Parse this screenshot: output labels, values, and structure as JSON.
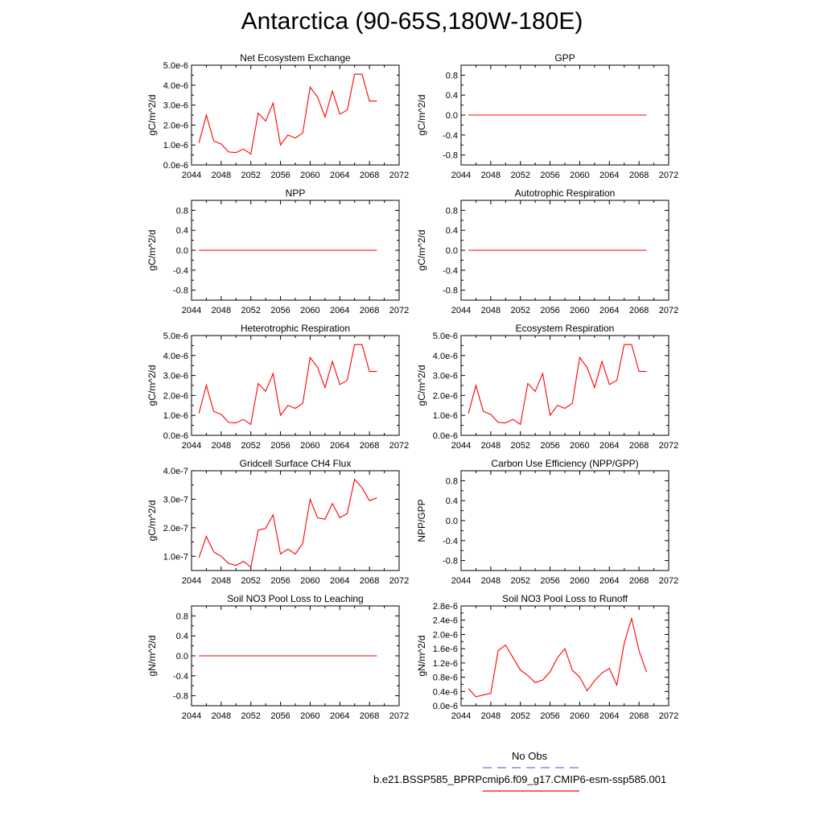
{
  "title": "Antarctica (90-65S,180W-180E)",
  "colors": {
    "series": "#ff0000",
    "obs": "#6a6aff",
    "axis": "#000000"
  },
  "legend": {
    "obs_label": "No Obs",
    "model_label": "b.e21.BSSP585_BPRPcmip6.f09_g17.CMIP6-esm-ssp585.001"
  },
  "chart_data": [
    {
      "type": "line",
      "title": "Net Ecosystem Exchange",
      "ylabel": "gC/m^2/d",
      "xlim": [
        2044,
        2072
      ],
      "ylim": [
        0,
        5e-06
      ],
      "xticks": [
        "2044",
        "2048",
        "2052",
        "2056",
        "2060",
        "2064",
        "2068",
        "2072"
      ],
      "yticks": [
        {
          "v": 0,
          "l": "0.0e-6"
        },
        {
          "v": 1e-06,
          "l": "1.0e-6"
        },
        {
          "v": 2e-06,
          "l": "2.0e-6"
        },
        {
          "v": 3e-06,
          "l": "3.0e-6"
        },
        {
          "v": 4e-06,
          "l": "4.0e-6"
        },
        {
          "v": 5e-06,
          "l": "5.0e-6"
        }
      ],
      "x": [
        2045,
        2046,
        2047,
        2048,
        2049,
        2050,
        2051,
        2052,
        2053,
        2054,
        2055,
        2056,
        2057,
        2058,
        2059,
        2060,
        2061,
        2062,
        2063,
        2064,
        2065,
        2066,
        2067,
        2068,
        2069
      ],
      "values": [
        1.1e-06,
        2.5e-06,
        1.2e-06,
        1.05e-06,
        6.5e-07,
        6.2e-07,
        8e-07,
        5.5e-07,
        2.6e-06,
        2.2e-06,
        3.1e-06,
        1e-06,
        1.5e-06,
        1.35e-06,
        1.6e-06,
        3.9e-06,
        3.4e-06,
        2.4e-06,
        3.7e-06,
        2.55e-06,
        2.75e-06,
        4.55e-06,
        4.55e-06,
        3.2e-06,
        3.2e-06
      ]
    },
    {
      "type": "line",
      "title": "GPP",
      "ylabel": "gC/m^2/d",
      "xlim": [
        2044,
        2072
      ],
      "ylim": [
        -1.0,
        1.0
      ],
      "xticks": [
        "2044",
        "2048",
        "2052",
        "2056",
        "2060",
        "2064",
        "2068",
        "2072"
      ],
      "yticks": [
        {
          "v": 0.8,
          "l": "0.8"
        },
        {
          "v": 0.4,
          "l": "0.4"
        },
        {
          "v": 0,
          "l": "0.0"
        },
        {
          "v": -0.4,
          "l": "-0.4"
        },
        {
          "v": -0.8,
          "l": "-0.8"
        }
      ],
      "x": [
        2045,
        2069
      ],
      "values": [
        0,
        0
      ]
    },
    {
      "type": "line",
      "title": "NPP",
      "ylabel": "gC/m^2/d",
      "xlim": [
        2044,
        2072
      ],
      "ylim": [
        -1.0,
        1.0
      ],
      "xticks": [
        "2044",
        "2048",
        "2052",
        "2056",
        "2060",
        "2064",
        "2068",
        "2072"
      ],
      "yticks": [
        {
          "v": 0.8,
          "l": "0.8"
        },
        {
          "v": 0.4,
          "l": "0.4"
        },
        {
          "v": 0,
          "l": "0.0"
        },
        {
          "v": -0.4,
          "l": "-0.4"
        },
        {
          "v": -0.8,
          "l": "-0.8"
        }
      ],
      "x": [
        2045,
        2069
      ],
      "values": [
        0,
        0
      ]
    },
    {
      "type": "line",
      "title": "Autotrophic Respiration",
      "ylabel": "gC/m^2/d",
      "xlim": [
        2044,
        2072
      ],
      "ylim": [
        -1.0,
        1.0
      ],
      "xticks": [
        "2044",
        "2048",
        "2052",
        "2056",
        "2060",
        "2064",
        "2068",
        "2072"
      ],
      "yticks": [
        {
          "v": 0.8,
          "l": "0.8"
        },
        {
          "v": 0.4,
          "l": "0.4"
        },
        {
          "v": 0,
          "l": "0.0"
        },
        {
          "v": -0.4,
          "l": "-0.4"
        },
        {
          "v": -0.8,
          "l": "-0.8"
        }
      ],
      "x": [
        2045,
        2069
      ],
      "values": [
        0,
        0
      ]
    },
    {
      "type": "line",
      "title": "Heterotrophic Respiration",
      "ylabel": "gC/m^2/d",
      "xlim": [
        2044,
        2072
      ],
      "ylim": [
        0,
        5e-06
      ],
      "xticks": [
        "2044",
        "2048",
        "2052",
        "2056",
        "2060",
        "2064",
        "2068",
        "2072"
      ],
      "yticks": [
        {
          "v": 0,
          "l": "0.0e-6"
        },
        {
          "v": 1e-06,
          "l": "1.0e-6"
        },
        {
          "v": 2e-06,
          "l": "2.0e-6"
        },
        {
          "v": 3e-06,
          "l": "3.0e-6"
        },
        {
          "v": 4e-06,
          "l": "4.0e-6"
        },
        {
          "v": 5e-06,
          "l": "5.0e-6"
        }
      ],
      "x": [
        2045,
        2046,
        2047,
        2048,
        2049,
        2050,
        2051,
        2052,
        2053,
        2054,
        2055,
        2056,
        2057,
        2058,
        2059,
        2060,
        2061,
        2062,
        2063,
        2064,
        2065,
        2066,
        2067,
        2068,
        2069
      ],
      "values": [
        1.1e-06,
        2.5e-06,
        1.2e-06,
        1.05e-06,
        6.5e-07,
        6.2e-07,
        8e-07,
        5.5e-07,
        2.6e-06,
        2.2e-06,
        3.1e-06,
        1e-06,
        1.5e-06,
        1.35e-06,
        1.6e-06,
        3.9e-06,
        3.4e-06,
        2.4e-06,
        3.7e-06,
        2.55e-06,
        2.75e-06,
        4.55e-06,
        4.55e-06,
        3.2e-06,
        3.2e-06
      ]
    },
    {
      "type": "line",
      "title": "Ecosystem Respiration",
      "ylabel": "gC/m^2/d",
      "xlim": [
        2044,
        2072
      ],
      "ylim": [
        0,
        5e-06
      ],
      "xticks": [
        "2044",
        "2048",
        "2052",
        "2056",
        "2060",
        "2064",
        "2068",
        "2072"
      ],
      "yticks": [
        {
          "v": 0,
          "l": "0.0e-6"
        },
        {
          "v": 1e-06,
          "l": "1.0e-6"
        },
        {
          "v": 2e-06,
          "l": "2.0e-6"
        },
        {
          "v": 3e-06,
          "l": "3.0e-6"
        },
        {
          "v": 4e-06,
          "l": "4.0e-6"
        },
        {
          "v": 5e-06,
          "l": "5.0e-6"
        }
      ],
      "x": [
        2045,
        2046,
        2047,
        2048,
        2049,
        2050,
        2051,
        2052,
        2053,
        2054,
        2055,
        2056,
        2057,
        2058,
        2059,
        2060,
        2061,
        2062,
        2063,
        2064,
        2065,
        2066,
        2067,
        2068,
        2069
      ],
      "values": [
        1.1e-06,
        2.5e-06,
        1.2e-06,
        1.05e-06,
        6.5e-07,
        6.2e-07,
        8e-07,
        5.5e-07,
        2.6e-06,
        2.2e-06,
        3.1e-06,
        1e-06,
        1.5e-06,
        1.35e-06,
        1.6e-06,
        3.9e-06,
        3.4e-06,
        2.4e-06,
        3.7e-06,
        2.55e-06,
        2.75e-06,
        4.55e-06,
        4.55e-06,
        3.2e-06,
        3.2e-06
      ]
    },
    {
      "type": "line",
      "title": "Gridcell Surface CH4 Flux",
      "ylabel": "gC/m^2/d",
      "xlim": [
        2044,
        2072
      ],
      "ylim": [
        5e-08,
        4e-07
      ],
      "xticks": [
        "2044",
        "2048",
        "2052",
        "2056",
        "2060",
        "2064",
        "2068",
        "2072"
      ],
      "yticks": [
        {
          "v": 1e-07,
          "l": "1.0e-7"
        },
        {
          "v": 2e-07,
          "l": "2.0e-7"
        },
        {
          "v": 3e-07,
          "l": "3.0e-7"
        },
        {
          "v": 4e-07,
          "l": "4.0e-7"
        }
      ],
      "x": [
        2045,
        2046,
        2047,
        2048,
        2049,
        2050,
        2051,
        2052,
        2053,
        2054,
        2055,
        2056,
        2057,
        2058,
        2059,
        2060,
        2061,
        2062,
        2063,
        2064,
        2065,
        2066,
        2067,
        2068,
        2069
      ],
      "values": [
        9.5e-08,
        1.7e-07,
        1.15e-07,
        1e-07,
        7.5e-08,
        6.8e-08,
        8.2e-08,
        6.2e-08,
        1.92e-07,
        1.98e-07,
        2.45e-07,
        1.08e-07,
        1.25e-07,
        1.08e-07,
        1.45e-07,
        3e-07,
        2.35e-07,
        2.3e-07,
        2.85e-07,
        2.35e-07,
        2.5e-07,
        3.7e-07,
        3.4e-07,
        2.95e-07,
        3.05e-07
      ]
    },
    {
      "type": "line",
      "title": "Carbon Use Efficiency (NPP/GPP)",
      "ylabel": "NPP/GPP",
      "xlim": [
        2044,
        2072
      ],
      "ylim": [
        -1.0,
        1.0
      ],
      "xticks": [
        "2044",
        "2048",
        "2052",
        "2056",
        "2060",
        "2064",
        "2068",
        "2072"
      ],
      "yticks": [
        {
          "v": 0.8,
          "l": "0.8"
        },
        {
          "v": 0.4,
          "l": "0.4"
        },
        {
          "v": 0,
          "l": "0.0"
        },
        {
          "v": -0.4,
          "l": "-0.4"
        },
        {
          "v": -0.8,
          "l": "-0.8"
        }
      ],
      "x": [],
      "values": []
    },
    {
      "type": "line",
      "title": "Soil NO3 Pool Loss to Leaching",
      "ylabel": "gN/m^2/d",
      "xlim": [
        2044,
        2072
      ],
      "ylim": [
        -1.0,
        1.0
      ],
      "xticks": [
        "2044",
        "2048",
        "2052",
        "2056",
        "2060",
        "2064",
        "2068",
        "2072"
      ],
      "yticks": [
        {
          "v": 0.8,
          "l": "0.8"
        },
        {
          "v": 0.4,
          "l": "0.4"
        },
        {
          "v": 0,
          "l": "0.0"
        },
        {
          "v": -0.4,
          "l": "-0.4"
        },
        {
          "v": -0.8,
          "l": "-0.8"
        }
      ],
      "x": [
        2045,
        2069
      ],
      "values": [
        0,
        0
      ]
    },
    {
      "type": "line",
      "title": "Soil NO3 Pool Loss to Runoff",
      "ylabel": "gN/m^2/d",
      "xlim": [
        2044,
        2072
      ],
      "ylim": [
        0,
        2.8e-06
      ],
      "xticks": [
        "2044",
        "2048",
        "2052",
        "2056",
        "2060",
        "2064",
        "2068",
        "2072"
      ],
      "yticks": [
        {
          "v": 0,
          "l": "0.0e-6"
        },
        {
          "v": 4e-07,
          "l": "0.4e-6"
        },
        {
          "v": 8e-07,
          "l": "0.8e-6"
        },
        {
          "v": 1.2e-06,
          "l": "1.2e-6"
        },
        {
          "v": 1.6e-06,
          "l": "1.6e-6"
        },
        {
          "v": 2e-06,
          "l": "2.0e-6"
        },
        {
          "v": 2.4e-06,
          "l": "2.4e-6"
        },
        {
          "v": 2.8e-06,
          "l": "2.8e-6"
        }
      ],
      "x": [
        2045,
        2046,
        2047,
        2048,
        2049,
        2050,
        2051,
        2052,
        2053,
        2054,
        2055,
        2056,
        2057,
        2058,
        2059,
        2060,
        2061,
        2062,
        2063,
        2064,
        2065,
        2066,
        2067,
        2068,
        2069
      ],
      "values": [
        4.8e-07,
        2.5e-07,
        3e-07,
        3.5e-07,
        1.55e-06,
        1.7e-06,
        1.35e-06,
        1e-06,
        8.5e-07,
        6.5e-07,
        7.2e-07,
        9.5e-07,
        1.35e-06,
        1.6e-06,
        1e-06,
        8e-07,
        4.2e-07,
        7e-07,
        9.2e-07,
        1.05e-06,
        5.8e-07,
        1.75e-06,
        2.45e-06,
        1.55e-06,
        9.5e-07
      ]
    }
  ]
}
